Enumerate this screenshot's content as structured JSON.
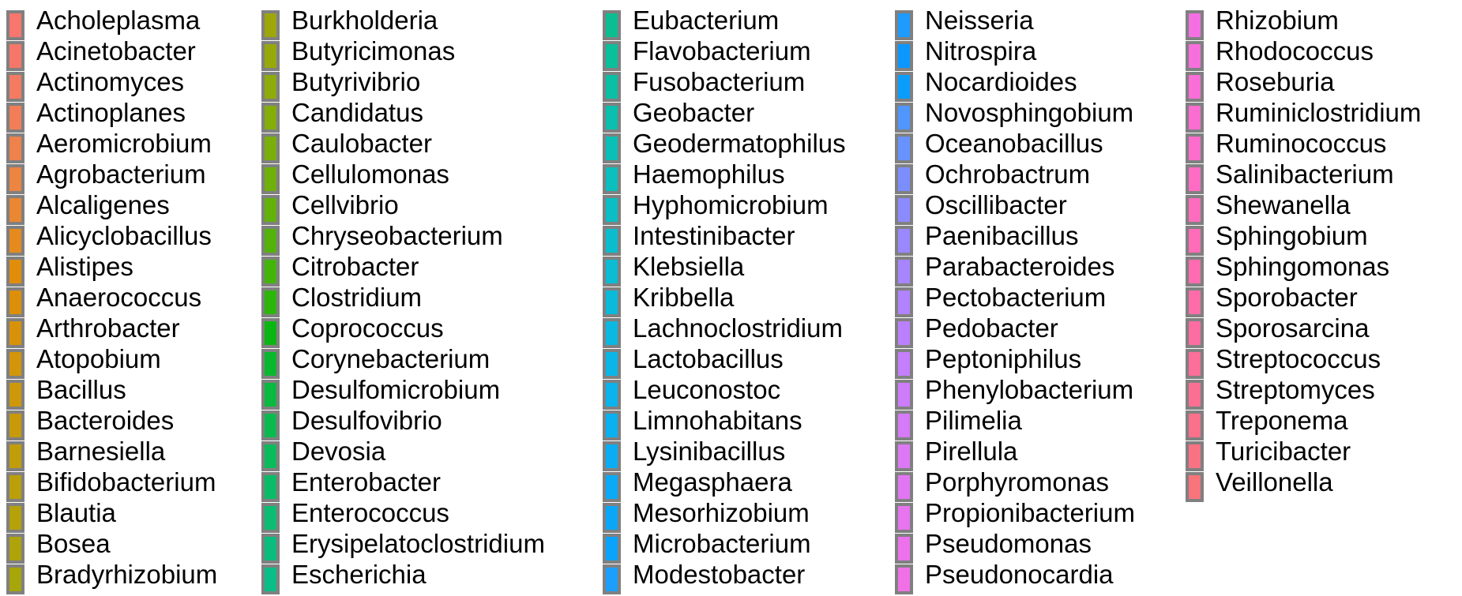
{
  "chart_data": {
    "type": "legend",
    "title": "",
    "columns": 5,
    "entries": [
      {
        "label": "Acholeplasma",
        "color": "#F8766D"
      },
      {
        "label": "Acinetobacter",
        "color": "#F67769"
      },
      {
        "label": "Actinomyces",
        "color": "#F47A62"
      },
      {
        "label": "Actinoplanes",
        "color": "#F27D57"
      },
      {
        "label": "Aeromicrobium",
        "color": "#EF814D"
      },
      {
        "label": "Agrobacterium",
        "color": "#EC8442"
      },
      {
        "label": "Alcaligenes",
        "color": "#E98733"
      },
      {
        "label": "Alicyclobacillus",
        "color": "#E58A1F"
      },
      {
        "label": "Alistipes",
        "color": "#E18D0A"
      },
      {
        "label": "Anaerococcus",
        "color": "#DD8F0A"
      },
      {
        "label": "Arthrobacter",
        "color": "#D8920A"
      },
      {
        "label": "Atopobium",
        "color": "#D3950A"
      },
      {
        "label": "Bacillus",
        "color": "#CE980A"
      },
      {
        "label": "Bacteroides",
        "color": "#C89A0A"
      },
      {
        "label": "Barnesiella",
        "color": "#C29D0A"
      },
      {
        "label": "Bifidobacterium",
        "color": "#BB9F0A"
      },
      {
        "label": "Blautia",
        "color": "#B5A10A"
      },
      {
        "label": "Bosea",
        "color": "#AEA30A"
      },
      {
        "label": "Bradyrhizobium",
        "color": "#A6A50A"
      },
      {
        "label": "Burkholderia",
        "color": "#9EA70A"
      },
      {
        "label": "Butyricimonas",
        "color": "#96A90A"
      },
      {
        "label": "Butyrivibrio",
        "color": "#8DAB0A"
      },
      {
        "label": "Candidatus",
        "color": "#84AD0A"
      },
      {
        "label": "Caulobacter",
        "color": "#7AAE0A"
      },
      {
        "label": "Cellulomonas",
        "color": "#6FB00A"
      },
      {
        "label": "Cellvibrio",
        "color": "#62B20A"
      },
      {
        "label": "Chryseobacterium",
        "color": "#54B30A"
      },
      {
        "label": "Citrobacter",
        "color": "#43B50A"
      },
      {
        "label": "Clostridium",
        "color": "#2CB60A"
      },
      {
        "label": "Coprococcus",
        "color": "#0AB712"
      },
      {
        "label": "Corynebacterium",
        "color": "#0AB82E"
      },
      {
        "label": "Desulfomicrobium",
        "color": "#0AB940"
      },
      {
        "label": "Desulfovibrio",
        "color": "#0ABA4F"
      },
      {
        "label": "Devosia",
        "color": "#0ABB5C"
      },
      {
        "label": "Enterobacter",
        "color": "#0ABC68"
      },
      {
        "label": "Enterococcus",
        "color": "#0ABD73"
      },
      {
        "label": "Erysipelatoclostridium",
        "color": "#0ABD7E"
      },
      {
        "label": "Escherichia",
        "color": "#0ABE88"
      },
      {
        "label": "Eubacterium",
        "color": "#0ABE92"
      },
      {
        "label": "Flavobacterium",
        "color": "#0ABF9B"
      },
      {
        "label": "Fusobacterium",
        "color": "#0ABFA4"
      },
      {
        "label": "Geobacter",
        "color": "#0ABFAD"
      },
      {
        "label": "Geodermatophilus",
        "color": "#0ABFB6"
      },
      {
        "label": "Haemophilus",
        "color": "#0ABFBE"
      },
      {
        "label": "Hyphomicrobium",
        "color": "#0ABEC6"
      },
      {
        "label": "Intestinibacter",
        "color": "#0ABDCD"
      },
      {
        "label": "Klebsiella",
        "color": "#0ABCD4"
      },
      {
        "label": "Kribbella",
        "color": "#0ABADB"
      },
      {
        "label": "Lachnoclostridium",
        "color": "#0AB8E1"
      },
      {
        "label": "Lactobacillus",
        "color": "#0AB6E7"
      },
      {
        "label": "Leuconostoc",
        "color": "#0AB3EC"
      },
      {
        "label": "Limnohabitans",
        "color": "#0AB0F0"
      },
      {
        "label": "Lysinibacillus",
        "color": "#0AADF4"
      },
      {
        "label": "Megasphaera",
        "color": "#0AAAF7"
      },
      {
        "label": "Mesorhizobium",
        "color": "#0AA7F9"
      },
      {
        "label": "Microbacterium",
        "color": "#0AA3FB"
      },
      {
        "label": "Modestobacter",
        "color": "#1C9FFC"
      },
      {
        "label": "Neisseria",
        "color": "#1E9BFD"
      },
      {
        "label": "Nitrospira",
        "color": "#0A97FE"
      },
      {
        "label": "Nocardioides",
        "color": "#0A9DFC"
      },
      {
        "label": "Novosphingobium",
        "color": "#4F96FE"
      },
      {
        "label": "Oceanobacillus",
        "color": "#6892FE"
      },
      {
        "label": "Ochrobactrum",
        "color": "#7C8EFE"
      },
      {
        "label": "Oscillibacter",
        "color": "#8C8BFE"
      },
      {
        "label": "Paenibacillus",
        "color": "#9A88FE"
      },
      {
        "label": "Parabacteroides",
        "color": "#A685FE"
      },
      {
        "label": "Pectobacterium",
        "color": "#B183FE"
      },
      {
        "label": "Pedobacter",
        "color": "#BB80FD"
      },
      {
        "label": "Peptoniphilus",
        "color": "#C57EFC"
      },
      {
        "label": "Phenylobacterium",
        "color": "#CD7CFA"
      },
      {
        "label": "Pilimelia",
        "color": "#D57AF8"
      },
      {
        "label": "Pirellula",
        "color": "#DC78F5"
      },
      {
        "label": "Porphyromonas",
        "color": "#E276F2"
      },
      {
        "label": "Propionibacterium",
        "color": "#E874EF"
      },
      {
        "label": "Pseudomonas",
        "color": "#EC72EB"
      },
      {
        "label": "Pseudonocardia",
        "color": "#F071E6"
      },
      {
        "label": "Rhizobium",
        "color": "#F470E2"
      },
      {
        "label": "Rhodococcus",
        "color": "#F76FDC"
      },
      {
        "label": "Roseburia",
        "color": "#F96ED7"
      },
      {
        "label": "Ruminiclostridium",
        "color": "#FB6DD1"
      },
      {
        "label": "Ruminococcus",
        "color": "#FD6DCB"
      },
      {
        "label": "Salinibacterium",
        "color": "#FE6CC4"
      },
      {
        "label": "Shewanella",
        "color": "#FE6CBE"
      },
      {
        "label": "Sphingobium",
        "color": "#FF6CB7"
      },
      {
        "label": "Sphingomonas",
        "color": "#FF6CB0"
      },
      {
        "label": "Sporobacter",
        "color": "#FF6DA9"
      },
      {
        "label": "Sporosarcina",
        "color": "#FE6DA1"
      },
      {
        "label": "Streptococcus",
        "color": "#FD6E9A"
      },
      {
        "label": "Streptomyces",
        "color": "#FC6F92"
      },
      {
        "label": "Treponema",
        "color": "#FB708A"
      },
      {
        "label": "Turicibacter",
        "color": "#F97283"
      },
      {
        "label": "Veillonella",
        "color": "#F8747B"
      }
    ]
  }
}
